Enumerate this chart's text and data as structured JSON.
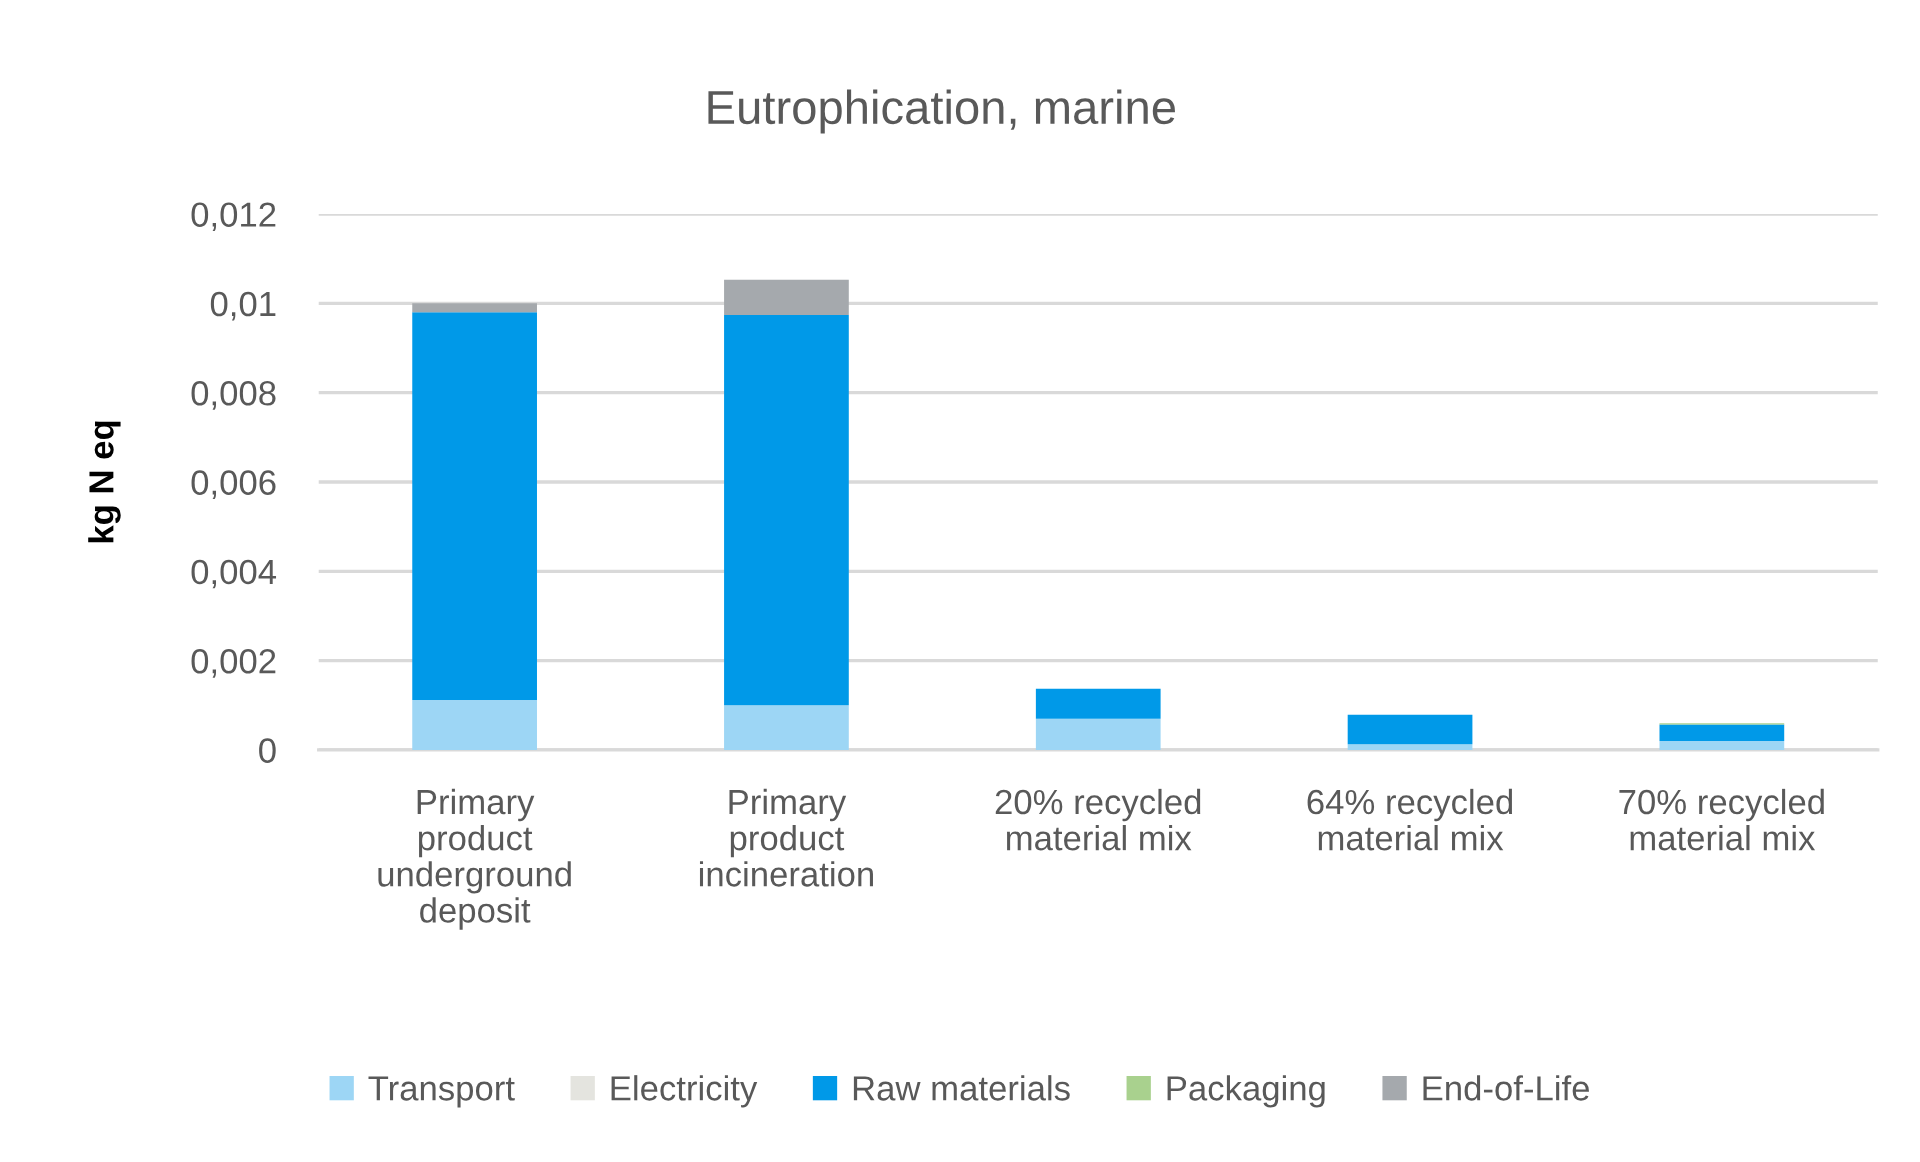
{
  "chart_data": {
    "type": "bar",
    "title": "Eutrophication, marine",
    "ylabel": "kg N eq",
    "categories": [
      "Primary product underground deposit",
      "Primary product incineration",
      "20% recycled material mix",
      "64% recycled material mix",
      "70% recycled material mix"
    ],
    "stacked": true,
    "series": [
      {
        "name": "Transport",
        "color": "#9dd6f5",
        "values": [
          0.00112,
          0.001,
          0.0007,
          0.00013,
          0.0002
        ]
      },
      {
        "name": "Electricity",
        "color": "#e4e4df",
        "values": [
          0,
          0,
          0,
          0,
          0
        ]
      },
      {
        "name": "Raw materials",
        "color": "#0099e8",
        "values": [
          0.00868,
          0.00874,
          0.00067,
          0.00066,
          0.00037
        ]
      },
      {
        "name": "Packaging",
        "color": "#a9d18e",
        "values": [
          0,
          0,
          0,
          0,
          3e-05
        ]
      },
      {
        "name": "End-of-Life",
        "color": "#a5a9ad",
        "values": [
          0.0002,
          0.00079,
          0,
          0,
          0
        ]
      }
    ],
    "ylim": [
      0,
      0.012
    ],
    "yticks": [
      0,
      {
        "value": 0.002,
        "label": "0,002"
      },
      {
        "value": 0.004,
        "label": "0,004"
      },
      {
        "value": 0.006,
        "label": "0,006"
      },
      {
        "value": 0.008,
        "label": "0,008"
      },
      {
        "value": 0.01,
        "label": "0,01"
      },
      {
        "value": 0.012,
        "label": "0,012"
      }
    ],
    "grid": "y",
    "legend": "bottom"
  }
}
